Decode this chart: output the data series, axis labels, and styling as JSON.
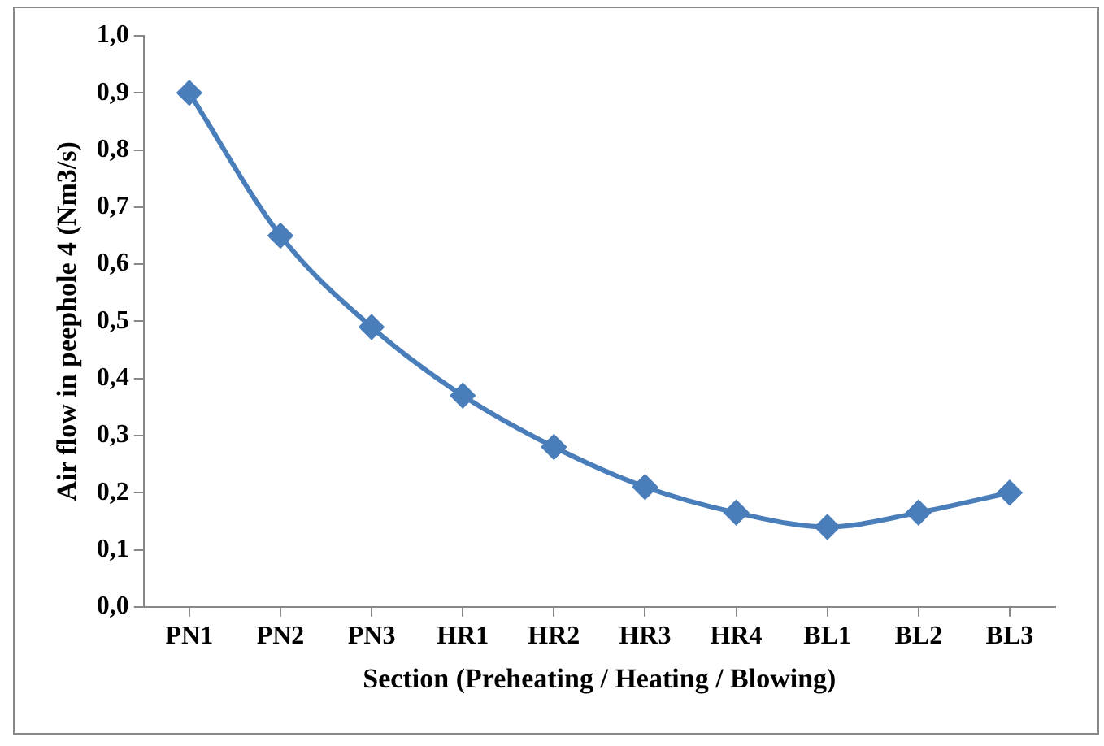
{
  "chart_data": {
    "type": "line",
    "xlabel": "Section (Preheating / Heating / Blowing)",
    "ylabel": "Air flow in peephole 4 (Nm3/s)",
    "categories": [
      "PN1",
      "PN2",
      "PN3",
      "HR1",
      "HR2",
      "HR3",
      "HR4",
      "BL1",
      "BL2",
      "BL3"
    ],
    "series": [
      {
        "color": "#4a7ebb",
        "values": [
          0.9,
          0.65,
          0.49,
          0.37,
          0.28,
          0.21,
          0.165,
          0.14,
          0.165,
          0.2
        ]
      }
    ],
    "ylim": [
      0,
      1
    ],
    "yticks": [
      {
        "value": 0,
        "label": "0,0"
      },
      {
        "value": 0.1,
        "label": "0,1"
      },
      {
        "value": 0.2,
        "label": "0,2"
      },
      {
        "value": 0.3,
        "label": "0,3"
      },
      {
        "value": 0.4,
        "label": "0,4"
      },
      {
        "value": 0.5,
        "label": "0,5"
      },
      {
        "value": 0.6,
        "label": "0,6"
      },
      {
        "value": 0.7,
        "label": "0,7"
      },
      {
        "value": 0.8,
        "label": "0,8"
      },
      {
        "value": 0.9,
        "label": "0,9"
      },
      {
        "value": 1,
        "label": "1,0"
      }
    ],
    "grid": false,
    "legend": false,
    "marker": "diamond",
    "line_style": "solid"
  }
}
